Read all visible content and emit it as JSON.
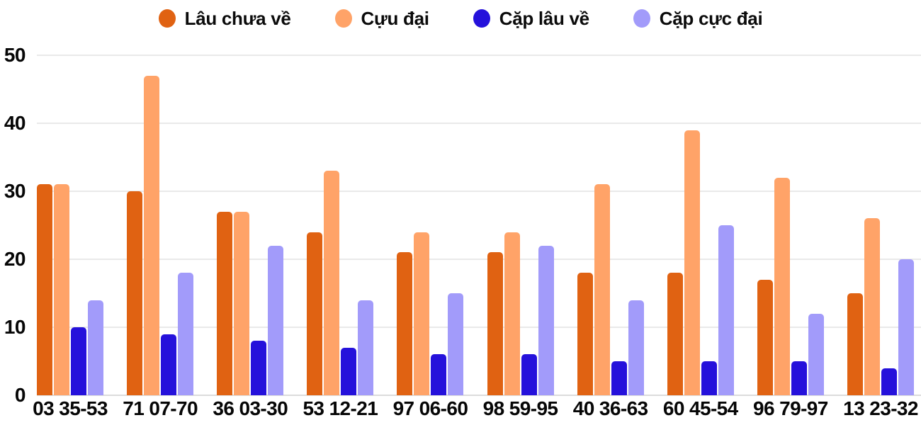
{
  "chart_data": {
    "type": "bar",
    "title": "",
    "xlabel": "",
    "ylabel": "",
    "categories": [
      "03 35-53",
      "71 07-70",
      "36 03-30",
      "53 12-21",
      "97 06-60",
      "98 59-95",
      "40 36-63",
      "60 45-54",
      "96 79-97",
      "13 23-32"
    ],
    "series": [
      {
        "name": "Lâu chưa về",
        "color": "#e06212",
        "values": [
          31,
          30,
          27,
          24,
          21,
          21,
          18,
          18,
          17,
          15
        ]
      },
      {
        "name": "Cựu đại",
        "color": "#ffa368",
        "values": [
          31,
          47,
          27,
          33,
          24,
          24,
          31,
          39,
          32,
          26
        ]
      },
      {
        "name": "Cặp lâu về",
        "color": "#2511db",
        "values": [
          10,
          9,
          8,
          7,
          6,
          6,
          5,
          5,
          5,
          4
        ]
      },
      {
        "name": "Cặp cực đại",
        "color": "#a29bfa",
        "values": [
          14,
          18,
          22,
          14,
          15,
          22,
          14,
          25,
          12,
          20
        ]
      }
    ],
    "y_ticks": [
      0,
      10,
      20,
      30,
      40,
      50
    ],
    "ylim": [
      0,
      50
    ],
    "grid": true,
    "legend_position": "top",
    "colors": {
      "background": "#ffffff",
      "gridline": "#e9e9e9",
      "baseline": "#dcdcdc",
      "text": "#060606"
    }
  }
}
